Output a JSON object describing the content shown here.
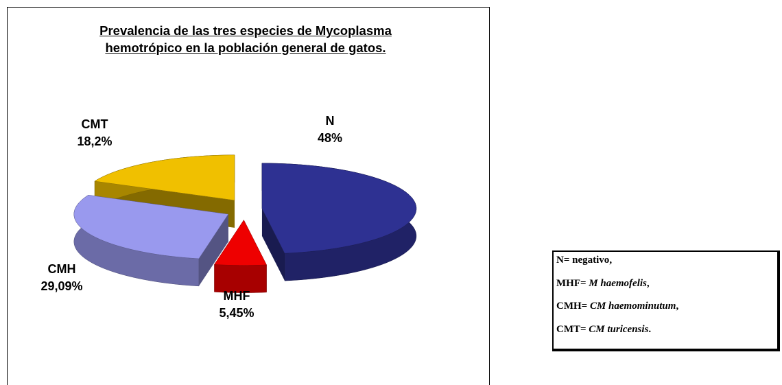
{
  "chart_data": {
    "type": "pie3d",
    "title": "Prevalencia de las tres especies de Mycoplasma hemotrópico en la población general de gatos.",
    "categories": [
      "N",
      "MHF",
      "CMH",
      "CMT"
    ],
    "values": [
      48,
      5.45,
      29.09,
      18.2
    ],
    "value_labels": [
      "48%",
      "5,45%",
      "29,09%",
      "18,2%"
    ],
    "colors": [
      "#2e3192",
      "#ee0000",
      "#9999ee",
      "#f0c000"
    ],
    "exploded": true,
    "legend_note": [
      {
        "key": "N=",
        "term": "negativo",
        "punct": ",",
        "italic": false
      },
      {
        "key": "MHF=",
        "term": "M haemofelis",
        "punct": ",",
        "italic": true
      },
      {
        "key": "CMH=",
        "term": "CM haemominutum",
        "punct": ",",
        "italic": true
      },
      {
        "key": "CMT=",
        "term": "CM turicensis",
        "punct": ".",
        "italic": true
      }
    ]
  }
}
